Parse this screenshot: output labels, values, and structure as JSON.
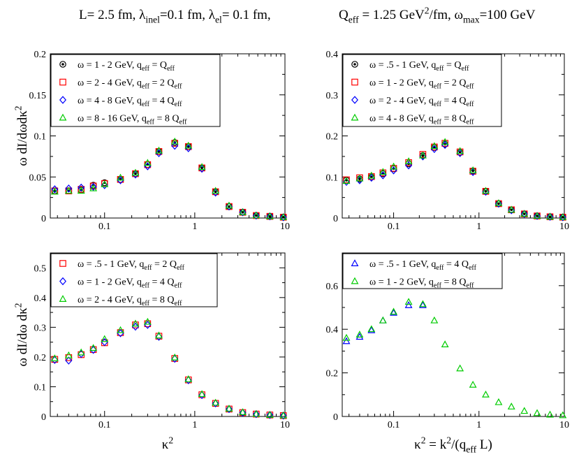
{
  "header": {
    "left": "L= 2.5 fm,  λ_inel=0.1 fm,  λ_el= 0.1 fm,",
    "right": "Q_eff = 1.25 GeV^2/fm, ω_max=100 GeV"
  },
  "styles": {
    "black": "#000000",
    "red": "#ff0000",
    "blue": "#0000ff",
    "green": "#00cc00"
  },
  "chart_data": [
    {
      "type": "scatter",
      "panel": "top-left",
      "ylabel": "ω dI/dωdκ^2",
      "xlabel": "",
      "xscale": "log",
      "xlim": [
        0.025,
        10
      ],
      "ylim": [
        0,
        0.2
      ],
      "yticks": [
        "0",
        "0.05",
        "0.1",
        "0.15",
        "0.2"
      ],
      "xticks": [
        "0.1",
        "1",
        "10"
      ],
      "legend_position": "top-left",
      "series": [
        {
          "name": "ω = 1 - 2 GeV, q_eff = Q_eff",
          "marker": "circle",
          "color": "black",
          "x": [
            0.028,
            0.04,
            0.055,
            0.075,
            0.1,
            0.15,
            0.22,
            0.3,
            0.4,
            0.6,
            0.85,
            1.2,
            1.7,
            2.4,
            3.4,
            4.8,
            6.8,
            9.6
          ],
          "y": [
            0.033,
            0.033,
            0.034,
            0.04,
            0.043,
            0.047,
            0.054,
            0.065,
            0.081,
            0.092,
            0.087,
            0.061,
            0.032,
            0.014,
            0.007,
            0.003,
            0.002,
            0.001
          ]
        },
        {
          "name": "ω = 2 - 4 GeV, q_eff = 2 Q_eff",
          "marker": "square",
          "color": "red",
          "x": [
            0.028,
            0.04,
            0.055,
            0.075,
            0.1,
            0.15,
            0.22,
            0.3,
            0.4,
            0.6,
            0.85,
            1.2,
            1.7,
            2.4,
            3.4,
            4.8,
            6.8,
            9.6
          ],
          "y": [
            0.033,
            0.033,
            0.035,
            0.039,
            0.042,
            0.047,
            0.054,
            0.065,
            0.081,
            0.091,
            0.087,
            0.061,
            0.032,
            0.014,
            0.007,
            0.003,
            0.002,
            0.001
          ]
        },
        {
          "name": "ω = 4 - 8 GeV, q_eff = 4 Q_eff",
          "marker": "diamond",
          "color": "blue",
          "x": [
            0.028,
            0.04,
            0.055,
            0.075,
            0.1,
            0.15,
            0.22,
            0.3,
            0.4,
            0.6,
            0.85,
            1.2,
            1.7,
            2.4,
            3.4,
            4.8,
            6.8,
            9.6
          ],
          "y": [
            0.035,
            0.036,
            0.037,
            0.038,
            0.04,
            0.046,
            0.053,
            0.063,
            0.079,
            0.088,
            0.085,
            0.06,
            0.031,
            0.014,
            0.007,
            0.003,
            0.002,
            0.001
          ]
        },
        {
          "name": "ω = 8 - 16 GeV, q_eff = 8 Q_eff",
          "marker": "triangle",
          "color": "green",
          "x": [
            0.028,
            0.04,
            0.055,
            0.075,
            0.1,
            0.15,
            0.22,
            0.3,
            0.4,
            0.6,
            0.85,
            1.2,
            1.7,
            2.4,
            3.4,
            4.8,
            6.8,
            9.6
          ],
          "y": [
            0.032,
            0.033,
            0.033,
            0.036,
            0.041,
            0.049,
            0.055,
            0.067,
            0.082,
            0.093,
            0.088,
            0.062,
            0.033,
            0.015,
            0.007,
            0.003,
            0.002,
            0.001
          ]
        }
      ]
    },
    {
      "type": "scatter",
      "panel": "top-right",
      "ylabel": "",
      "xlabel": "",
      "xscale": "log",
      "xlim": [
        0.025,
        10
      ],
      "ylim": [
        0,
        0.4
      ],
      "yticks": [
        "0",
        "0.1",
        "0.2",
        "0.3",
        "0.4"
      ],
      "xticks": [
        "0.1",
        "1",
        "10"
      ],
      "legend_position": "top-left",
      "series": [
        {
          "name": "ω = .5 - 1 GeV, q_eff = Q_eff",
          "marker": "circle",
          "color": "black",
          "x": [
            0.028,
            0.04,
            0.055,
            0.075,
            0.1,
            0.15,
            0.22,
            0.3,
            0.4,
            0.6,
            0.85,
            1.2,
            1.7,
            2.4,
            3.4,
            4.8,
            6.8,
            9.6
          ],
          "y": [
            0.092,
            0.095,
            0.1,
            0.108,
            0.12,
            0.132,
            0.152,
            0.172,
            0.18,
            0.16,
            0.115,
            0.065,
            0.035,
            0.02,
            0.01,
            0.005,
            0.003,
            0.002
          ]
        },
        {
          "name": "ω = 1 - 2 GeV, q_eff = 2 Q_eff",
          "marker": "square",
          "color": "red",
          "x": [
            0.028,
            0.04,
            0.055,
            0.075,
            0.1,
            0.15,
            0.22,
            0.3,
            0.4,
            0.6,
            0.85,
            1.2,
            1.7,
            2.4,
            3.4,
            4.8,
            6.8,
            9.6
          ],
          "y": [
            0.093,
            0.098,
            0.101,
            0.11,
            0.121,
            0.135,
            0.155,
            0.173,
            0.182,
            0.161,
            0.114,
            0.065,
            0.035,
            0.02,
            0.01,
            0.005,
            0.003,
            0.002
          ]
        },
        {
          "name": "ω = 2 - 4 GeV, q_eff = 4 Q_eff",
          "marker": "diamond",
          "color": "blue",
          "x": [
            0.028,
            0.04,
            0.055,
            0.075,
            0.1,
            0.15,
            0.22,
            0.3,
            0.4,
            0.6,
            0.85,
            1.2,
            1.7,
            2.4,
            3.4,
            4.8,
            6.8,
            9.6
          ],
          "y": [
            0.088,
            0.092,
            0.098,
            0.104,
            0.116,
            0.128,
            0.15,
            0.168,
            0.178,
            0.158,
            0.112,
            0.064,
            0.035,
            0.019,
            0.01,
            0.005,
            0.003,
            0.002
          ]
        },
        {
          "name": "ω = 4 - 8 GeV, q_eff = 8 Q_eff",
          "marker": "triangle",
          "color": "green",
          "x": [
            0.028,
            0.04,
            0.055,
            0.075,
            0.1,
            0.15,
            0.22,
            0.3,
            0.4,
            0.6,
            0.85,
            1.2,
            1.7,
            2.4,
            3.4,
            4.8,
            6.8,
            9.6
          ],
          "y": [
            0.09,
            0.096,
            0.103,
            0.112,
            0.125,
            0.138,
            0.152,
            0.175,
            0.185,
            0.163,
            0.116,
            0.066,
            0.036,
            0.02,
            0.01,
            0.005,
            0.003,
            0.002
          ]
        }
      ]
    },
    {
      "type": "scatter",
      "panel": "bottom-left",
      "ylabel": "ω dI/dω dκ^2",
      "xlabel": "κ^2",
      "xscale": "log",
      "xlim": [
        0.025,
        10
      ],
      "ylim": [
        0,
        0.55
      ],
      "yticks": [
        "0",
        "0.1",
        "0.2",
        "0.3",
        "0.4",
        "0.5"
      ],
      "xticks": [
        "0.1",
        "1",
        "10"
      ],
      "legend_position": "top-left",
      "series": [
        {
          "name": "ω = .5 - 1 GeV, q_eff = 2 Q_eff",
          "marker": "square",
          "color": "red",
          "x": [
            0.028,
            0.04,
            0.055,
            0.075,
            0.1,
            0.15,
            0.22,
            0.3,
            0.4,
            0.6,
            0.85,
            1.2,
            1.7,
            2.4,
            3.4,
            4.8,
            6.8,
            9.6
          ],
          "y": [
            0.192,
            0.198,
            0.208,
            0.225,
            0.248,
            0.282,
            0.308,
            0.312,
            0.27,
            0.195,
            0.123,
            0.073,
            0.044,
            0.025,
            0.013,
            0.008,
            0.005,
            0.003
          ]
        },
        {
          "name": "ω = 1 - 2 GeV, q_eff = 4 Q_eff",
          "marker": "diamond",
          "color": "blue",
          "x": [
            0.028,
            0.04,
            0.055,
            0.075,
            0.1,
            0.15,
            0.22,
            0.3,
            0.4,
            0.6,
            0.85,
            1.2,
            1.7,
            2.4,
            3.4,
            4.8,
            6.8,
            9.6
          ],
          "y": [
            0.19,
            0.188,
            0.21,
            0.224,
            0.25,
            0.28,
            0.302,
            0.308,
            0.268,
            0.194,
            0.122,
            0.072,
            0.044,
            0.025,
            0.013,
            0.008,
            0.005,
            0.003
          ]
        },
        {
          "name": "ω = 2 - 4 GeV, q_eff = 8 Q_eff",
          "marker": "triangle",
          "color": "green",
          "x": [
            0.028,
            0.04,
            0.055,
            0.075,
            0.1,
            0.15,
            0.22,
            0.3,
            0.4,
            0.6,
            0.85,
            1.2,
            1.7,
            2.4,
            3.4,
            4.8,
            6.8,
            9.6
          ],
          "y": [
            0.195,
            0.205,
            0.215,
            0.23,
            0.26,
            0.29,
            0.312,
            0.318,
            0.272,
            0.198,
            0.125,
            0.075,
            0.046,
            0.026,
            0.014,
            0.008,
            0.005,
            0.003
          ]
        }
      ]
    },
    {
      "type": "scatter",
      "panel": "bottom-right",
      "ylabel": "",
      "xlabel": "κ^2 = k^2/(q_eff L)",
      "xscale": "log",
      "xlim": [
        0.025,
        10
      ],
      "ylim": [
        0,
        0.75
      ],
      "yticks": [
        "0",
        "0.2",
        "0.4",
        "0.6"
      ],
      "xticks": [
        "0.1",
        "1",
        "10"
      ],
      "legend_position": "top-left",
      "series": [
        {
          "name": "ω = .5 - 1 GeV, q_eff = 4 Q_eff",
          "marker": "triangle",
          "color": "blue",
          "x": [
            0.028,
            0.04,
            0.055,
            0.075,
            0.1,
            0.15,
            0.22
          ],
          "y": [
            0.345,
            0.365,
            0.395,
            0.44,
            0.475,
            0.51,
            0.51
          ]
        },
        {
          "name": "ω = 1 - 2 GeV, q_eff = 8 Q_eff",
          "marker": "triangle",
          "color": "green",
          "x": [
            0.028,
            0.04,
            0.055,
            0.075,
            0.1,
            0.15,
            0.22,
            0.3,
            0.4,
            0.6,
            0.85,
            1.2,
            1.7,
            2.4,
            3.4,
            4.8,
            6.8,
            9.6
          ],
          "y": [
            0.36,
            0.375,
            0.4,
            0.44,
            0.48,
            0.525,
            0.515,
            0.44,
            0.33,
            0.22,
            0.145,
            0.1,
            0.065,
            0.045,
            0.025,
            0.015,
            0.008,
            0.005
          ]
        }
      ]
    }
  ]
}
